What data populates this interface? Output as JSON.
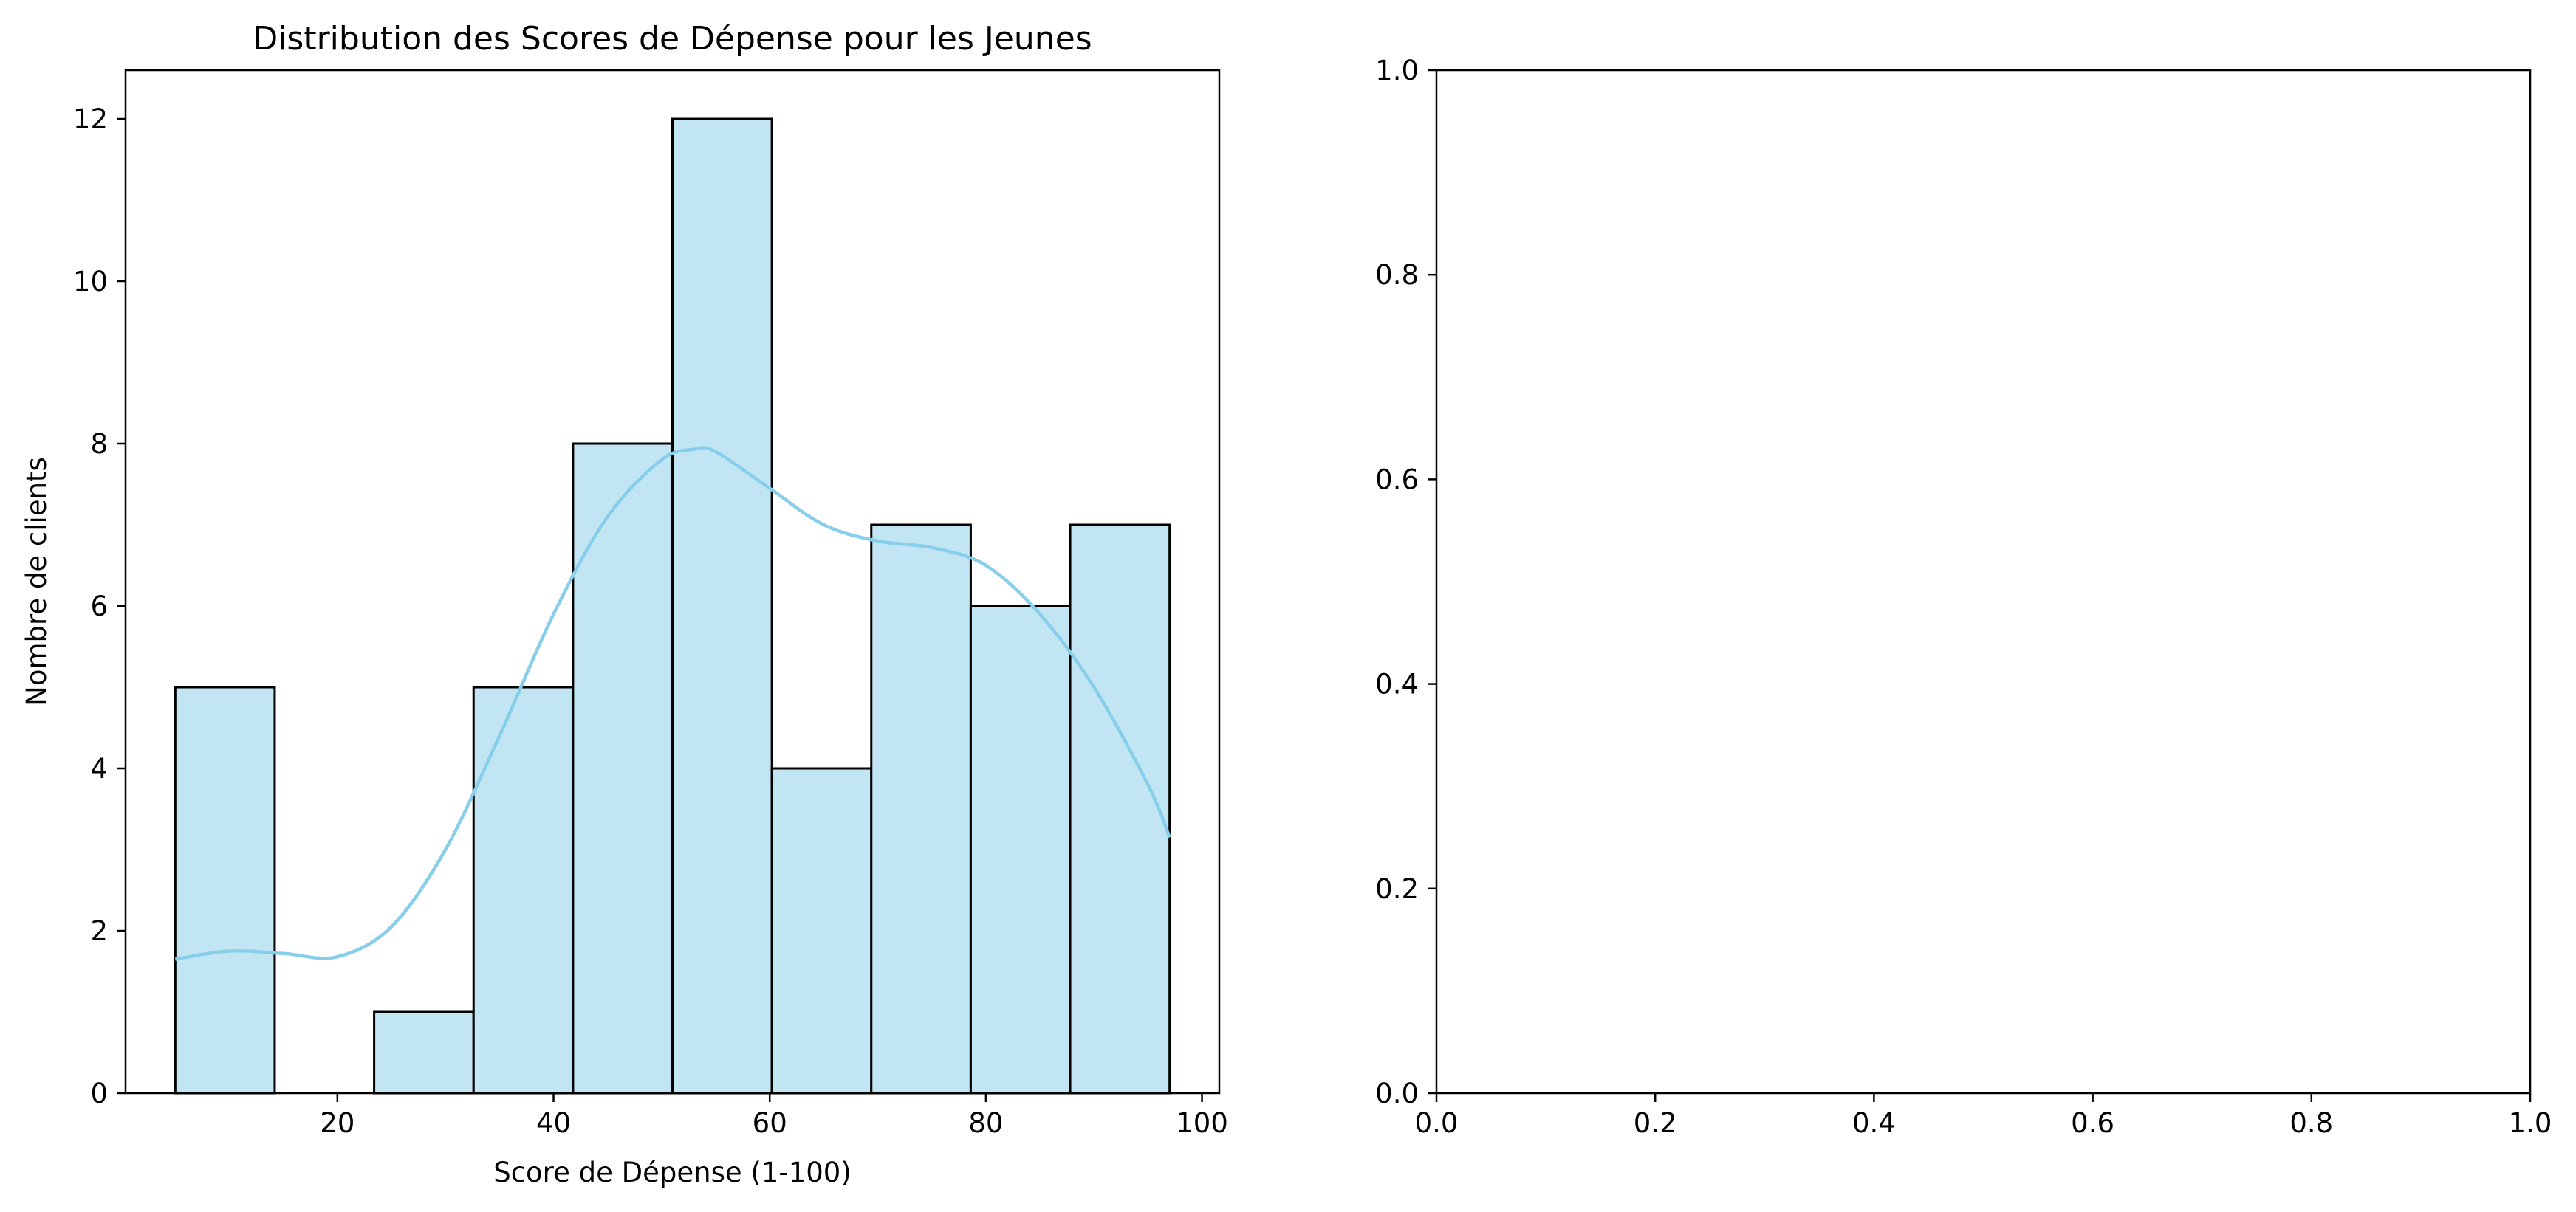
{
  "figure": {
    "background": "#ffffff"
  },
  "chart_data": [
    {
      "type": "bar",
      "subtype": "histogram-with-kde",
      "title": "Distribution des Scores de Dépense pour les Jeunes",
      "xlabel": "Score de Dépense (1-100)",
      "ylabel": "Nombre de clients",
      "bin_edges": [
        5,
        14.2,
        23.4,
        32.6,
        41.8,
        51,
        60.2,
        69.4,
        78.6,
        87.8,
        97
      ],
      "values": [
        5,
        0,
        1,
        5,
        8,
        12,
        4,
        7,
        6,
        7
      ],
      "xlim": [
        0.4,
        101.6
      ],
      "ylim": [
        0,
        12.6
      ],
      "xticks": [
        20,
        40,
        60,
        80,
        100
      ],
      "yticks": [
        0,
        2,
        4,
        6,
        8,
        10,
        12
      ],
      "bar_color": "#c2e5f4",
      "edge_color": "#000000",
      "kde": {
        "color": "#87ceeb",
        "x": [
          5,
          10,
          15,
          20,
          25,
          30,
          35,
          40,
          45,
          50,
          53,
          55,
          60,
          65,
          70,
          75,
          80,
          85,
          90,
          95,
          97
        ],
        "y": [
          1.65,
          1.75,
          1.72,
          1.68,
          2.05,
          3.0,
          4.4,
          5.9,
          7.1,
          7.8,
          7.93,
          7.9,
          7.45,
          7.0,
          6.8,
          6.72,
          6.5,
          5.9,
          5.0,
          3.8,
          3.15
        ]
      },
      "grid": false
    },
    {
      "type": "scatter",
      "empty": true,
      "xlim": [
        0,
        1
      ],
      "ylim": [
        0,
        1
      ],
      "xticks": [
        "0.0",
        "0.2",
        "0.4",
        "0.6",
        "0.8",
        "1.0"
      ],
      "yticks": [
        "0.0",
        "0.2",
        "0.4",
        "0.6",
        "0.8",
        "1.0"
      ],
      "grid": false
    }
  ]
}
